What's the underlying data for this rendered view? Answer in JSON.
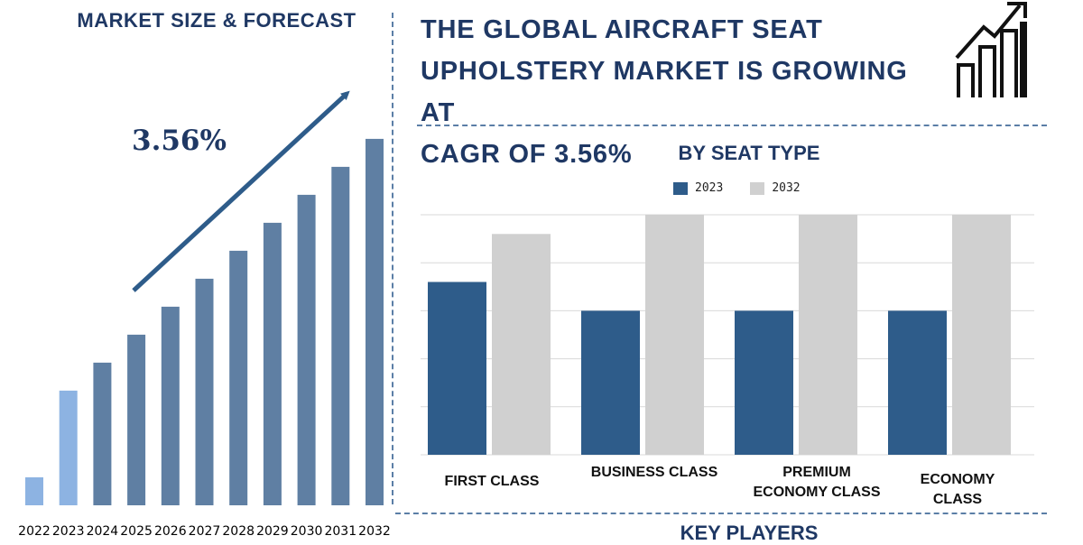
{
  "left_title": "MARKET SIZE & FORECAST",
  "headline_lines": [
    "THE GLOBAL AIRCRAFT SEAT",
    "UPHOLSTERY MARKET IS GROWING AT",
    "CAGR OF 3.56%"
  ],
  "cagr_label": "3.56%",
  "icon": "growth-chart-icon",
  "key_players_title": "KEY PLAYERS",
  "colors": {
    "title_navy": "#1f3864",
    "bar_slate": "#5f7fa3",
    "bar_highlight": "#8db3e2",
    "arrow": "#2e5c8a",
    "series_2023": "#2e5c8a",
    "series_2032": "#d0d0d0",
    "divider": "#5b7ea6"
  },
  "chart_data": [
    {
      "type": "bar",
      "title": "MARKET SIZE & FORECAST",
      "categories": [
        "2022",
        "2023",
        "2024",
        "2025",
        "2026",
        "2027",
        "2028",
        "2029",
        "2030",
        "2031",
        "2032"
      ],
      "values": [
        1.0,
        4.1,
        5.1,
        6.1,
        7.1,
        8.1,
        9.1,
        10.1,
        11.1,
        12.1,
        13.1
      ],
      "highlight": [
        "2022",
        "2023"
      ],
      "annotation": "3.56%",
      "y_axis_visible": false
    },
    {
      "type": "bar",
      "title": "BY SEAT TYPE",
      "categories": [
        "FIRST CLASS",
        "BUSINESS CLASS",
        "PREMIUM ECONOMY CLASS",
        "ECONOMY CLASS"
      ],
      "category_lines": [
        [
          "FIRST CLASS"
        ],
        [
          "BUSINESS CLASS"
        ],
        [
          "PREMIUM",
          "ECONOMY CLASS"
        ],
        [
          "ECONOMY",
          "CLASS"
        ]
      ],
      "series": [
        {
          "name": "2023",
          "values": [
            3.6,
            3.0,
            3.0,
            3.0
          ]
        },
        {
          "name": "2032",
          "values": [
            4.6,
            5.0,
            5.0,
            5.0
          ]
        }
      ],
      "ylim": [
        0,
        5
      ],
      "grid": true,
      "legend": "top-center"
    }
  ]
}
